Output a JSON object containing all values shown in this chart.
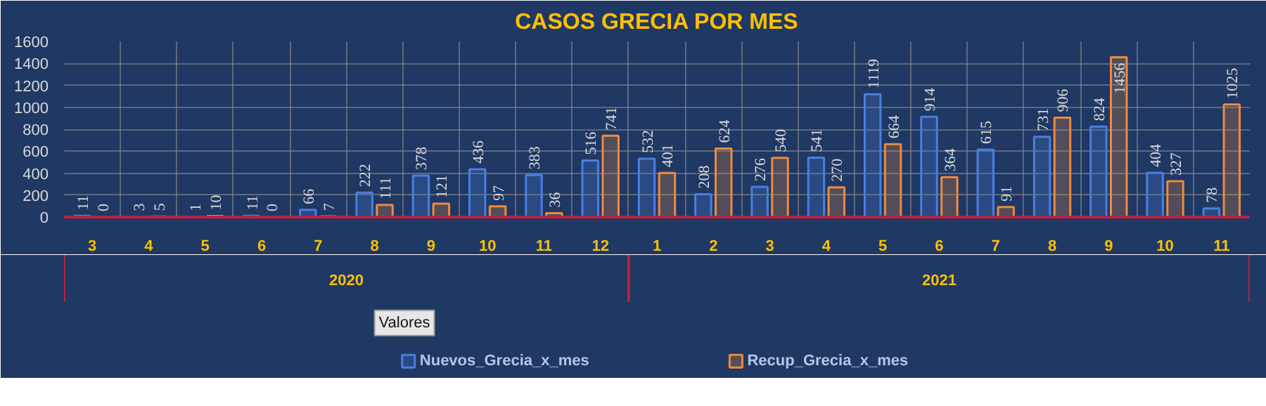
{
  "chart_data": {
    "type": "bar",
    "title": "CASOS GRECIA POR MES",
    "categories": [
      "3",
      "4",
      "5",
      "6",
      "7",
      "8",
      "9",
      "10",
      "11",
      "12",
      "1",
      "2",
      "3",
      "4",
      "5",
      "6",
      "7",
      "8",
      "9",
      "10",
      "11"
    ],
    "series": [
      {
        "name": "Nuevos_Grecia_x_mes",
        "color": "#4a7fe0",
        "values": [
          11,
          3,
          1,
          11,
          66,
          222,
          378,
          436,
          383,
          516,
          532,
          208,
          276,
          541,
          1119,
          914,
          615,
          731,
          824,
          404,
          78
        ]
      },
      {
        "name": "Recup_Grecia_x_mes",
        "color": "#f08a3c",
        "values": [
          0,
          5,
          10,
          0,
          7,
          111,
          121,
          97,
          36,
          741,
          401,
          624,
          540,
          270,
          664,
          364,
          91,
          906,
          1456,
          327,
          1025
        ]
      }
    ],
    "annotations": [
      "2020",
      "2021",
      "Valores"
    ],
    "ylim": [
      0,
      1600
    ],
    "yticks": [
      0,
      200,
      400,
      600,
      800,
      1000,
      1200,
      1400,
      1600
    ],
    "grid": true,
    "legend": "bottom",
    "data_labels": true
  }
}
